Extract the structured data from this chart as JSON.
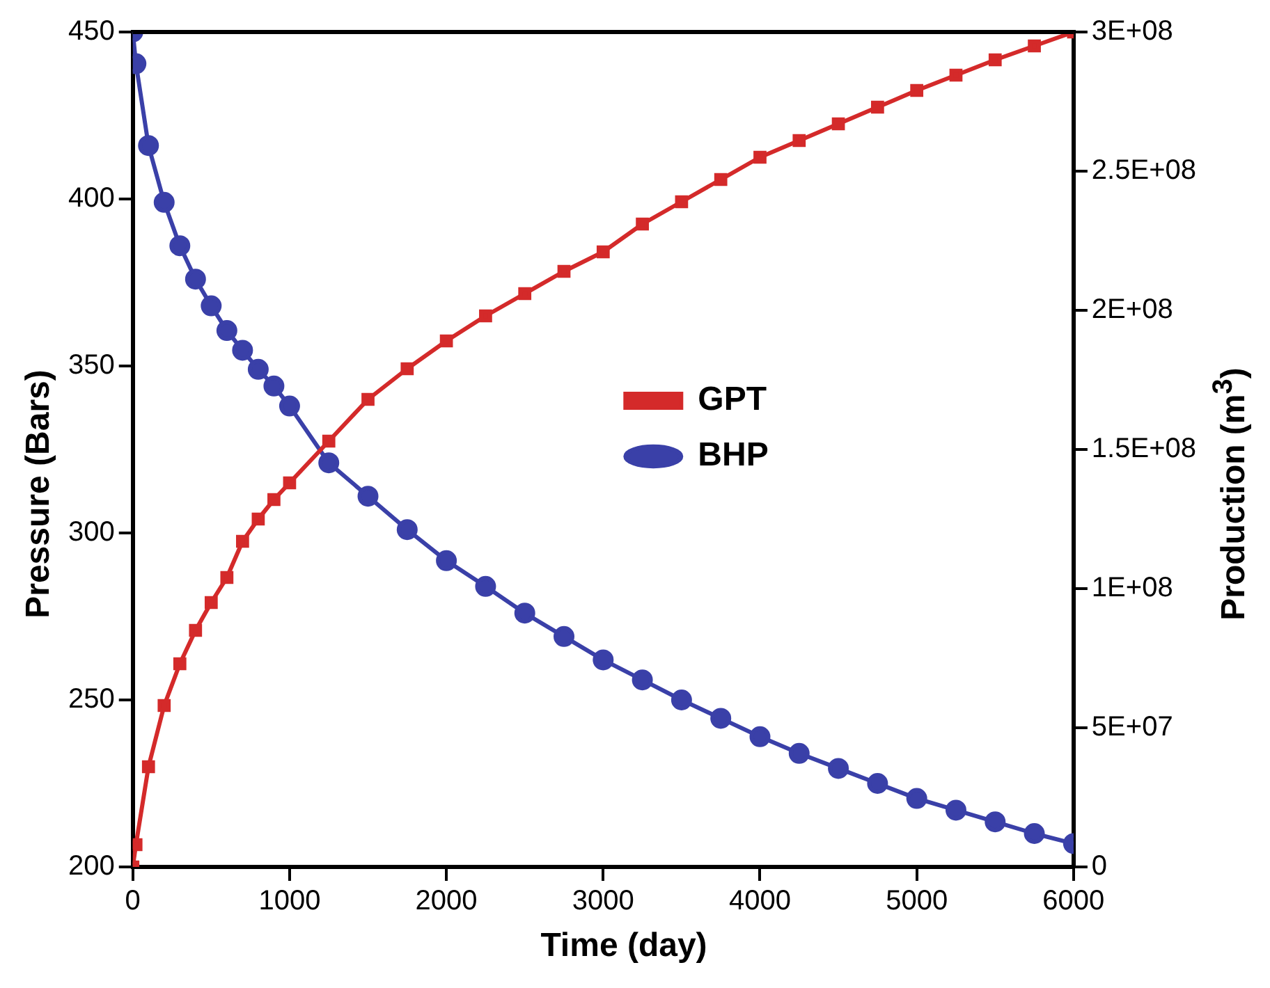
{
  "chart_data": {
    "type": "line",
    "xlabel": "Time (day)",
    "ylabel": "Pressure (Bars)",
    "y2label": "Production (m$^{3}$)",
    "x": [
      0,
      20,
      100,
      200,
      300,
      400,
      500,
      600,
      700,
      800,
      900,
      1000,
      1250,
      1500,
      1750,
      2000,
      2250,
      2500,
      2750,
      3000,
      3250,
      3500,
      3750,
      4000,
      4250,
      4500,
      4750,
      5000,
      5250,
      5500,
      5750,
      6000
    ],
    "series": [
      {
        "name": "GPT",
        "color": "#d42a2a",
        "axis": "y2",
        "marker": "square",
        "values": [
          0,
          8000000,
          36000000,
          58000000,
          73000000,
          85000000,
          95000000,
          104000000,
          117000000,
          125000000,
          132000000,
          138000000,
          153000000,
          168000000,
          179000000,
          189000000,
          198000000,
          206000000,
          214000000,
          221000000,
          231000000,
          239000000,
          247000000,
          255000000,
          261000000,
          267000000,
          273000000,
          279000000,
          284500000,
          290000000,
          295000000,
          300000000
        ]
      },
      {
        "name": "BHP",
        "color": "#3a40a8",
        "marker": "circle",
        "values": [
          450,
          440.5,
          416,
          399,
          386,
          376,
          368,
          360.6,
          354.7,
          349,
          344,
          338,
          321,
          311,
          301,
          291.7,
          284,
          276,
          269,
          262,
          256,
          250,
          244.5,
          239,
          234,
          229.5,
          225,
          220.5,
          217,
          213.5,
          210,
          207
        ]
      }
    ],
    "xlim": [
      0,
      6000
    ],
    "xticks": [
      0,
      1000,
      2000,
      3000,
      4000,
      5000,
      6000
    ],
    "ylim": [
      200,
      450
    ],
    "yticks": [
      200,
      250,
      300,
      350,
      400,
      450
    ],
    "y2lim": [
      0,
      300000000
    ],
    "y2ticks": [
      {
        "value": 0,
        "label": "0"
      },
      {
        "value": 50000000,
        "label": "5E+07"
      },
      {
        "value": 100000000,
        "label": "1E+08"
      },
      {
        "value": 150000000,
        "label": "1.5E+08"
      },
      {
        "value": 200000000,
        "label": "2E+08"
      },
      {
        "value": 250000000,
        "label": "2.5E+08"
      },
      {
        "value": 300000000,
        "label": "3E+08"
      }
    ],
    "grid": false,
    "legend": "right",
    "line_style": "solid"
  }
}
